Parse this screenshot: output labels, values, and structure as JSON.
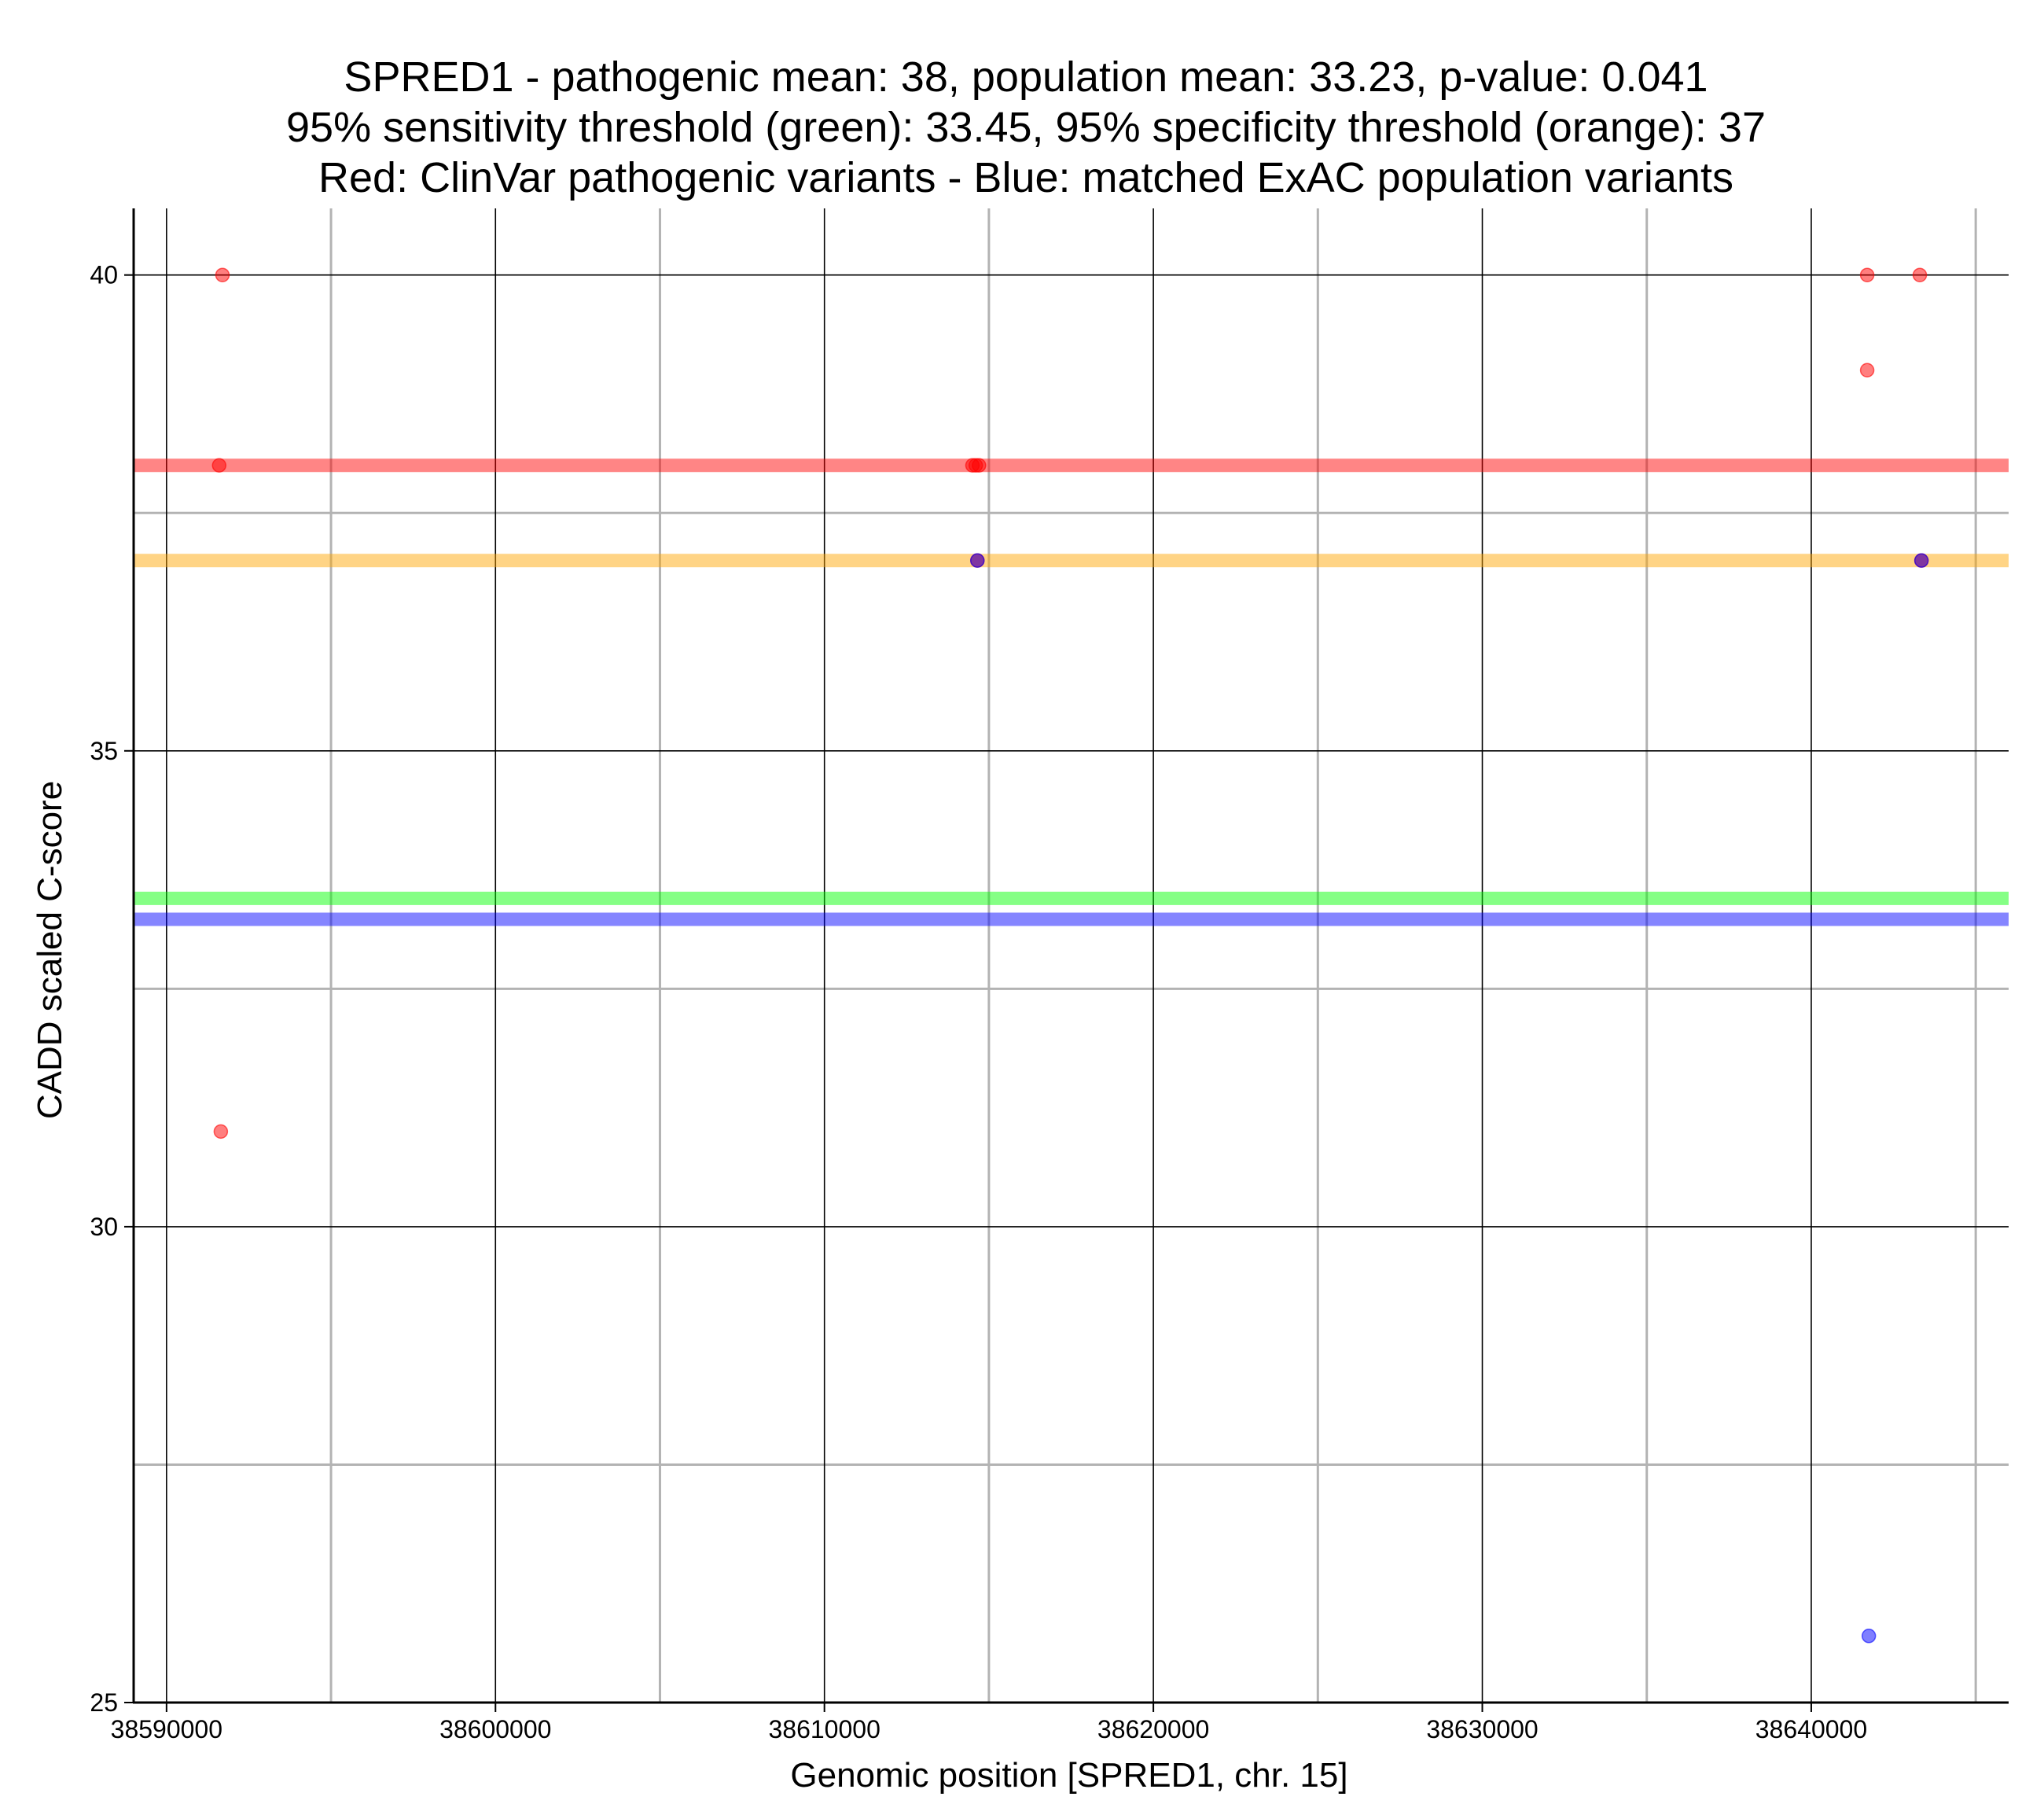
{
  "chart_data": {
    "type": "scatter",
    "title_lines": [
      "SPRED1 - pathogenic mean: 38, population mean: 33.23, p-value: 0.041",
      "95% sensitivity threshold (green): 33.45, 95% specificity threshold (orange): 37",
      "Red: ClinVar pathogenic variants - Blue: matched ExAC population variants"
    ],
    "xlabel": "Genomic position [SPRED1, chr. 15]",
    "ylabel": "CADD scaled C-score",
    "xlim": [
      38589000,
      38646000
    ],
    "ylim": [
      25,
      40.7
    ],
    "x_major_ticks": [
      38590000,
      38600000,
      38610000,
      38620000,
      38630000,
      38640000
    ],
    "x_minor_ticks": [
      38595000,
      38605000,
      38615000,
      38625000,
      38635000,
      38645000
    ],
    "y_major_ticks": [
      25,
      30,
      35,
      40
    ],
    "y_minor_ticks": [
      27.5,
      32.5,
      37.5
    ],
    "x_tick_labels": [
      "38590000",
      "38600000",
      "38610000",
      "38620000",
      "38630000",
      "38640000"
    ],
    "y_tick_labels": [
      "25",
      "30",
      "35",
      "40"
    ],
    "reference_lines": [
      {
        "name": "pathogenic-mean",
        "value": 38,
        "color": "#ff0000"
      },
      {
        "name": "specificity-threshold",
        "value": 37,
        "color": "#ffa500"
      },
      {
        "name": "sensitivity-threshold",
        "value": 33.45,
        "color": "#00ff00"
      },
      {
        "name": "population-mean",
        "value": 33.23,
        "color": "#0000ff"
      }
    ],
    "series": [
      {
        "name": "ClinVar pathogenic variants",
        "color": "#ff0000",
        "points": [
          {
            "x": 38591700,
            "y": 40
          },
          {
            "x": 38591600,
            "y": 38
          },
          {
            "x": 38591650,
            "y": 31
          },
          {
            "x": 38614500,
            "y": 38
          },
          {
            "x": 38614600,
            "y": 38
          },
          {
            "x": 38614700,
            "y": 38
          },
          {
            "x": 38614650,
            "y": 37
          },
          {
            "x": 38641700,
            "y": 40
          },
          {
            "x": 38643300,
            "y": 40
          },
          {
            "x": 38641700,
            "y": 39
          },
          {
            "x": 38643350,
            "y": 37
          }
        ]
      },
      {
        "name": "matched ExAC population variants",
        "color": "#0000ff",
        "points": [
          {
            "x": 38614650,
            "y": 37
          },
          {
            "x": 38643350,
            "y": 37
          },
          {
            "x": 38641750,
            "y": 25.7
          }
        ]
      }
    ]
  }
}
